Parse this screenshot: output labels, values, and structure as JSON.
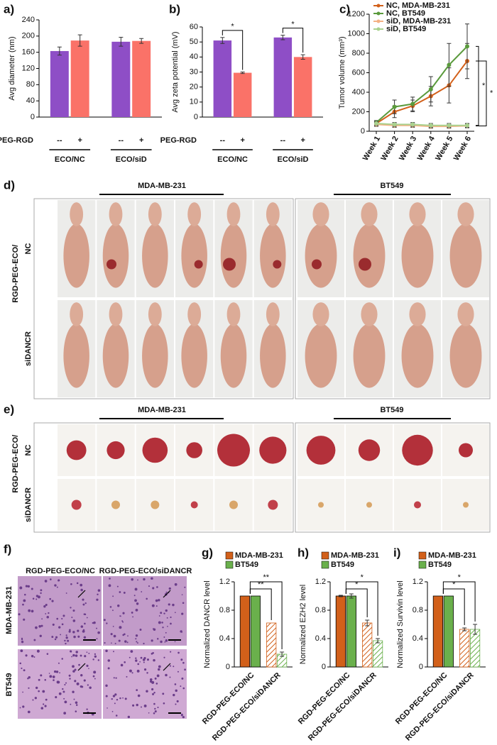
{
  "chart_data": [
    {
      "type": "bar",
      "label": "a)",
      "categories": [
        "--",
        "+",
        "--",
        "+"
      ],
      "groups": [
        "ECO/NC",
        "ECO/siD"
      ],
      "row_label": "PEG-RGD",
      "values": [
        163,
        189,
        186,
        188
      ],
      "errors": [
        10,
        14,
        11,
        6
      ],
      "colors": [
        "#8e4ec6",
        "#fa7268",
        "#8e4ec6",
        "#fa7268"
      ],
      "ylabel": "Avg diameter (nm)",
      "ylim": [
        0,
        240
      ],
      "yticks": [
        0,
        40,
        80,
        120,
        160,
        200,
        240
      ]
    },
    {
      "type": "bar",
      "label": "b)",
      "categories": [
        "--",
        "+",
        "--",
        "+"
      ],
      "groups": [
        "ECO/NC",
        "ECO/siD"
      ],
      "row_label": "PEG-RGD",
      "values": [
        51,
        29.5,
        53,
        40
      ],
      "errors": [
        2,
        0.5,
        1.5,
        1.5
      ],
      "colors": [
        "#8e4ec6",
        "#fa7268",
        "#8e4ec6",
        "#fa7268"
      ],
      "ylabel": "Avg zeta potential (mV)",
      "ylim": [
        0,
        60
      ],
      "yticks": [
        0,
        10,
        20,
        30,
        40,
        50,
        60
      ],
      "annotations": [
        "*",
        "*"
      ]
    },
    {
      "type": "line",
      "label": "c)",
      "categories": [
        "Week 1",
        "Week 2",
        "Week 3",
        "Week 4",
        "Week 5",
        "Week 6"
      ],
      "series": [
        {
          "name": "NC, MDA-MB-231",
          "color": "#d2601a",
          "values": [
            80,
            200,
            260,
            360,
            470,
            720
          ],
          "errors": [
            20,
            60,
            60,
            100,
            180,
            180
          ]
        },
        {
          "name": "NC, BT549",
          "color": "#5a9a3c",
          "values": [
            90,
            250,
            280,
            430,
            680,
            870
          ],
          "errors": [
            20,
            70,
            70,
            130,
            220,
            230
          ]
        },
        {
          "name": "siD, MDA-MB-231",
          "color": "#f4b183",
          "values": [
            70,
            60,
            60,
            50,
            50,
            55
          ],
          "errors": [
            20,
            20,
            20,
            20,
            20,
            20
          ]
        },
        {
          "name": "siD, BT549",
          "color": "#a9d18e",
          "values": [
            80,
            70,
            70,
            60,
            60,
            60
          ],
          "errors": [
            20,
            20,
            20,
            20,
            20,
            20
          ]
        }
      ],
      "ylabel": "Tumor volume (mm³)",
      "ylim": [
        0,
        1200
      ],
      "yticks": [
        0,
        200,
        400,
        600,
        800,
        1000,
        1200
      ],
      "legend": "upper left",
      "annotations": [
        "*",
        "*"
      ]
    },
    {
      "type": "bar",
      "label": "g)",
      "categories": [
        "RGD-PEG-ECO/NC",
        "RGD-PEG-ECO/siDANCR"
      ],
      "series": [
        {
          "name": "MDA-MB-231",
          "color": "#d2601a",
          "values": [
            1,
            0.62
          ],
          "errors": [
            0,
            0
          ]
        },
        {
          "name": "BT549",
          "color": "#6ab04c",
          "values": [
            1,
            0.18
          ],
          "errors": [
            0,
            0.03
          ]
        }
      ],
      "hatched": [
        false,
        true
      ],
      "ylabel": "Normalized DANCR level",
      "ylim": [
        0,
        1.2
      ],
      "yticks": [
        0,
        0.4,
        0.8,
        1.2
      ],
      "legend": "top",
      "annotations": [
        "**",
        "**"
      ]
    },
    {
      "type": "bar",
      "label": "h)",
      "categories": [
        "RGD-PEG-ECO/NC",
        "RGD-PEG-ECO/siDANCR"
      ],
      "series": [
        {
          "name": "MDA-MB-231",
          "color": "#d2601a",
          "values": [
            1,
            0.62
          ],
          "errors": [
            0.01,
            0.04
          ]
        },
        {
          "name": "BT549",
          "color": "#6ab04c",
          "values": [
            1,
            0.37
          ],
          "errors": [
            0.03,
            0.03
          ]
        }
      ],
      "hatched": [
        false,
        true
      ],
      "ylabel": "Normalized EZH2 level",
      "ylim": [
        0,
        1.2
      ],
      "yticks": [
        0,
        0.4,
        0.8,
        1.2
      ],
      "legend": "top",
      "annotations": [
        "*",
        "*"
      ]
    },
    {
      "type": "bar",
      "label": "i)",
      "categories": [
        "RGD-PEG-ECO/NC",
        "RGD-PEG-ECO/siDANCR"
      ],
      "series": [
        {
          "name": "MDA-MB-231",
          "color": "#d2601a",
          "values": [
            1,
            0.53
          ],
          "errors": [
            0,
            0.02
          ]
        },
        {
          "name": "BT549",
          "color": "#6ab04c",
          "values": [
            1,
            0.53
          ],
          "errors": [
            0,
            0.07
          ]
        }
      ],
      "hatched": [
        false,
        true
      ],
      "ylabel": "Normalized Survivin level",
      "ylim": [
        0,
        1.2
      ],
      "yticks": [
        0,
        0.4,
        0.8,
        1.2
      ],
      "legend": "top",
      "annotations": [
        "*",
        "*"
      ]
    }
  ],
  "photos": {
    "d": {
      "label": "d)",
      "columns": [
        "MDA-MB-231",
        "BT549"
      ],
      "rows": [
        "NC",
        "siDANCR"
      ],
      "side_label": "RGD-PEG-ECO/"
    },
    "e": {
      "label": "e)",
      "columns": [
        "MDA-MB-231",
        "BT549"
      ],
      "rows": [
        "NC",
        "siDANCR"
      ],
      "side_label": "RGD-PEG-ECO/"
    },
    "f": {
      "label": "f)",
      "columns": [
        "RGD-PEG-ECO/NC",
        "RGD-PEG-ECO/siDANCR"
      ],
      "rows": [
        "MDA-MB-231",
        "BT549"
      ]
    }
  }
}
